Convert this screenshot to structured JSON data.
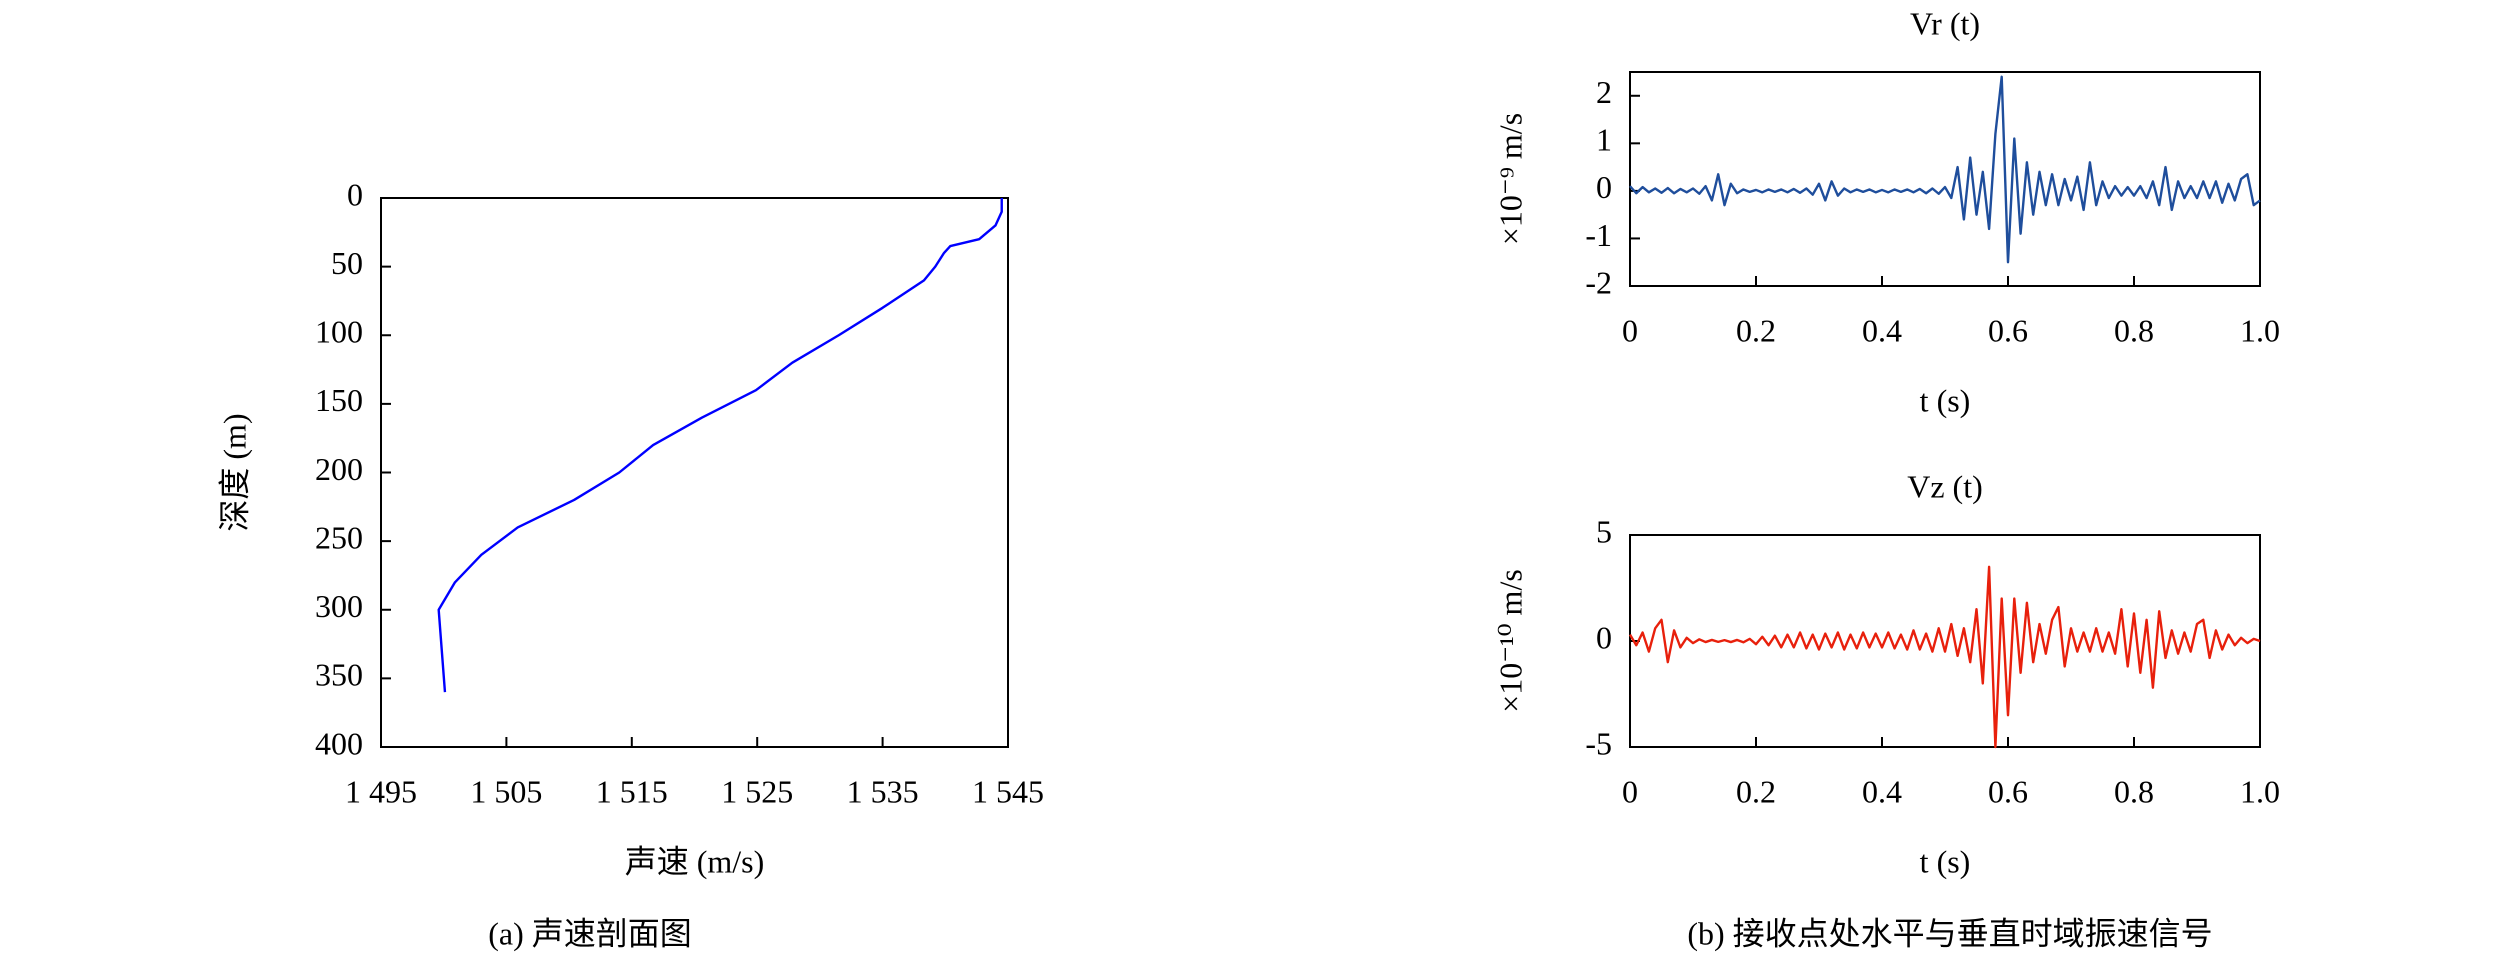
{
  "chart_data": [
    {
      "type": "line",
      "xlabel": "声速 (m/s)",
      "ylabel": "深度 (m)",
      "caption": "(a) 声速剖面图",
      "color": "#0000ff",
      "x": [
        1544.5,
        1544.5,
        1544,
        1542.7,
        1540.4,
        1539.9,
        1539.2,
        1538.3,
        1535,
        1531.5,
        1527.8,
        1524.9,
        1520.6,
        1516.7,
        1514,
        1510.4,
        1505.9,
        1503,
        1500.9,
        1499.6,
        1500.1
      ],
      "values": [
        0,
        10,
        20,
        30,
        35,
        40,
        50,
        60,
        80,
        100,
        120,
        140,
        160,
        180,
        200,
        220,
        240,
        260,
        280,
        300,
        360
      ],
      "xlim": [
        1495,
        1545
      ],
      "xticks": [
        {
          "value": 1495,
          "label": "1 495"
        },
        {
          "value": 1505,
          "label": "1 505"
        },
        {
          "value": 1515,
          "label": "1 515"
        },
        {
          "value": 1525,
          "label": "1 525"
        },
        {
          "value": 1535,
          "label": "1 535"
        },
        {
          "value": 1545,
          "label": "1 545"
        }
      ],
      "ylim": [
        0,
        400
      ],
      "yticks": [
        0,
        50,
        100,
        150,
        200,
        250,
        300,
        350,
        400
      ],
      "y_inverted": true
    },
    {
      "type": "line",
      "title": "Vr (t)",
      "xlabel": "t (s)",
      "ylabel": "×10⁻⁹ m/s",
      "color": "#1f4e9c",
      "x": [
        0,
        0.01,
        0.02,
        0.03,
        0.04,
        0.05,
        0.06,
        0.07,
        0.08,
        0.09,
        0.1,
        0.11,
        0.12,
        0.13,
        0.14,
        0.15,
        0.16,
        0.17,
        0.18,
        0.19,
        0.2,
        0.21,
        0.22,
        0.23,
        0.24,
        0.25,
        0.26,
        0.27,
        0.28,
        0.29,
        0.3,
        0.31,
        0.32,
        0.33,
        0.34,
        0.35,
        0.36,
        0.37,
        0.38,
        0.39,
        0.4,
        0.41,
        0.42,
        0.43,
        0.44,
        0.45,
        0.46,
        0.47,
        0.48,
        0.49,
        0.5,
        0.51,
        0.52,
        0.53,
        0.54,
        0.55,
        0.56,
        0.57,
        0.58,
        0.59,
        0.6,
        0.61,
        0.62,
        0.63,
        0.64,
        0.65,
        0.66,
        0.67,
        0.68,
        0.69,
        0.7,
        0.71,
        0.72,
        0.73,
        0.74,
        0.75,
        0.76,
        0.77,
        0.78,
        0.79,
        0.8,
        0.81,
        0.82,
        0.83,
        0.84,
        0.85,
        0.86,
        0.87,
        0.88,
        0.89,
        0.9,
        0.91,
        0.92,
        0.93,
        0.94,
        0.95,
        0.96,
        0.97,
        0.98,
        0.99,
        1
      ],
      "values": [
        0.1,
        -0.05,
        0.08,
        -0.03,
        0.05,
        -0.04,
        0.06,
        -0.05,
        0.04,
        -0.03,
        0.05,
        -0.06,
        0.1,
        -0.2,
        0.35,
        -0.3,
        0.15,
        -0.05,
        0.03,
        -0.02,
        0.02,
        -0.03,
        0.03,
        -0.02,
        0.03,
        -0.03,
        0.04,
        -0.04,
        0.05,
        -0.08,
        0.15,
        -0.2,
        0.2,
        -0.1,
        0.05,
        -0.03,
        0.03,
        -0.02,
        0.03,
        -0.03,
        0.02,
        -0.03,
        0.03,
        -0.02,
        0.03,
        -0.03,
        0.04,
        -0.05,
        0.05,
        -0.06,
        0.08,
        -0.15,
        0.5,
        -0.6,
        0.7,
        -0.5,
        0.4,
        -0.8,
        1.2,
        2.4,
        -1.5,
        1.1,
        -0.9,
        0.6,
        -0.5,
        0.4,
        -0.3,
        0.35,
        -0.3,
        0.25,
        -0.2,
        0.3,
        -0.4,
        0.6,
        -0.3,
        0.2,
        -0.15,
        0.1,
        -0.1,
        0.08,
        -0.1,
        0.1,
        -0.15,
        0.2,
        -0.3,
        0.5,
        -0.4,
        0.2,
        -0.15,
        0.1,
        -0.15,
        0.2,
        -0.15,
        0.2,
        -0.25,
        0.15,
        -0.2,
        0.25,
        0.35,
        -0.3,
        -0.2
      ],
      "xlim": [
        0,
        1
      ],
      "xticks": [
        0,
        0.2,
        0.4,
        0.6,
        0.8,
        {
          "value": 1,
          "label": "1.0"
        }
      ],
      "ylim": [
        -2,
        2.5
      ],
      "yticks": [
        -2,
        -1,
        0,
        1,
        2
      ]
    },
    {
      "type": "line",
      "title": "Vz (t)",
      "xlabel": "t (s)",
      "ylabel": "×10⁻¹⁰ m/s",
      "color": "#e8200c",
      "caption": "(b) 接收点处水平与垂直时域振速信号",
      "x": [
        0,
        0.01,
        0.02,
        0.03,
        0.04,
        0.05,
        0.06,
        0.07,
        0.08,
        0.09,
        0.1,
        0.11,
        0.12,
        0.13,
        0.14,
        0.15,
        0.16,
        0.17,
        0.18,
        0.19,
        0.2,
        0.21,
        0.22,
        0.23,
        0.24,
        0.25,
        0.26,
        0.27,
        0.28,
        0.29,
        0.3,
        0.31,
        0.32,
        0.33,
        0.34,
        0.35,
        0.36,
        0.37,
        0.38,
        0.39,
        0.4,
        0.41,
        0.42,
        0.43,
        0.44,
        0.45,
        0.46,
        0.47,
        0.48,
        0.49,
        0.5,
        0.51,
        0.52,
        0.53,
        0.54,
        0.55,
        0.56,
        0.57,
        0.58,
        0.59,
        0.6,
        0.61,
        0.62,
        0.63,
        0.64,
        0.65,
        0.66,
        0.67,
        0.68,
        0.69,
        0.7,
        0.71,
        0.72,
        0.73,
        0.74,
        0.75,
        0.76,
        0.77,
        0.78,
        0.79,
        0.8,
        0.81,
        0.82,
        0.83,
        0.84,
        0.85,
        0.86,
        0.87,
        0.88,
        0.89,
        0.9,
        0.91,
        0.92,
        0.93,
        0.94,
        0.95,
        0.96,
        0.97,
        0.98,
        0.99,
        1
      ],
      "values": [
        0.3,
        -0.2,
        0.4,
        -0.5,
        0.6,
        1.0,
        -1.0,
        0.5,
        -0.3,
        0.15,
        -0.1,
        0.08,
        -0.05,
        0.05,
        -0.04,
        0.04,
        -0.05,
        0.05,
        -0.06,
        0.1,
        -0.15,
        0.2,
        -0.2,
        0.25,
        -0.3,
        0.3,
        -0.3,
        0.4,
        -0.35,
        0.3,
        -0.4,
        0.35,
        -0.3,
        0.4,
        -0.4,
        0.3,
        -0.35,
        0.4,
        -0.3,
        0.35,
        -0.3,
        0.4,
        -0.35,
        0.3,
        -0.4,
        0.5,
        -0.4,
        0.35,
        -0.5,
        0.6,
        -0.5,
        0.8,
        -0.7,
        0.6,
        -1.0,
        1.5,
        -2.0,
        3.5,
        -5.0,
        2.0,
        -3.5,
        2.0,
        -1.5,
        1.8,
        -1.0,
        0.8,
        -0.6,
        1.0,
        1.6,
        -1.2,
        0.6,
        -0.5,
        0.4,
        -0.5,
        0.6,
        -0.5,
        0.4,
        -0.6,
        1.5,
        -1.2,
        1.3,
        -1.5,
        1.0,
        -2.2,
        1.4,
        -0.8,
        0.5,
        -0.6,
        0.4,
        -0.5,
        0.8,
        1.0,
        -0.8,
        0.5,
        -0.4,
        0.3,
        -0.2,
        0.15,
        -0.1,
        0.1,
        0
      ],
      "xlim": [
        0,
        1
      ],
      "xticks": [
        0,
        0.2,
        0.4,
        0.6,
        0.8,
        {
          "value": 1,
          "label": "1.0"
        }
      ],
      "ylim": [
        -5,
        5
      ],
      "yticks": [
        -5,
        0,
        5
      ]
    }
  ]
}
